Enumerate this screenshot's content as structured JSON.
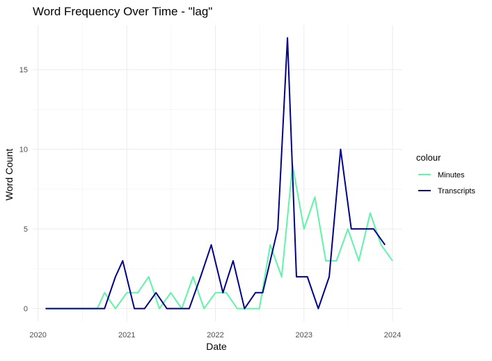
{
  "chart_data": {
    "type": "line",
    "title": "Word Frequency Over Time - \"lag\"",
    "xlabel": "Date",
    "ylabel": "Word Count",
    "x_ticks": [
      "2020",
      "2021",
      "2022",
      "2023",
      "2024"
    ],
    "y_ticks": [
      0,
      5,
      10,
      15
    ],
    "xlim": [
      "2019-12-10",
      "2024-02-10"
    ],
    "ylim": [
      -0.8,
      17.8
    ],
    "grid": true,
    "legend": {
      "title": "colour",
      "placement": "right"
    },
    "series": [
      {
        "name": "Minutes",
        "color": "#5ef5a8",
        "points": [
          {
            "x": "2020-02-01",
            "y": 0
          },
          {
            "x": "2020-03-01",
            "y": 0
          },
          {
            "x": "2020-04-01",
            "y": 0
          },
          {
            "x": "2020-05-01",
            "y": 0
          },
          {
            "x": "2020-06-01",
            "y": 0
          },
          {
            "x": "2020-07-01",
            "y": 0
          },
          {
            "x": "2020-08-01",
            "y": 0
          },
          {
            "x": "2020-09-01",
            "y": 0
          },
          {
            "x": "2020-10-01",
            "y": 1
          },
          {
            "x": "2020-11-15",
            "y": 0
          },
          {
            "x": "2021-01-01",
            "y": 1
          },
          {
            "x": "2021-02-15",
            "y": 1
          },
          {
            "x": "2021-04-01",
            "y": 2
          },
          {
            "x": "2021-05-15",
            "y": 0
          },
          {
            "x": "2021-07-01",
            "y": 1
          },
          {
            "x": "2021-08-15",
            "y": 0
          },
          {
            "x": "2021-10-01",
            "y": 2
          },
          {
            "x": "2021-11-15",
            "y": 0
          },
          {
            "x": "2022-01-01",
            "y": 1
          },
          {
            "x": "2022-02-15",
            "y": 1
          },
          {
            "x": "2022-04-01",
            "y": 0
          },
          {
            "x": "2022-05-15",
            "y": 0
          },
          {
            "x": "2022-07-01",
            "y": 0
          },
          {
            "x": "2022-08-15",
            "y": 4
          },
          {
            "x": "2022-10-01",
            "y": 2
          },
          {
            "x": "2022-11-15",
            "y": 9
          },
          {
            "x": "2023-01-01",
            "y": 5
          },
          {
            "x": "2023-02-15",
            "y": 7
          },
          {
            "x": "2023-04-01",
            "y": 3
          },
          {
            "x": "2023-05-15",
            "y": 3
          },
          {
            "x": "2023-07-01",
            "y": 5
          },
          {
            "x": "2023-08-15",
            "y": 3
          },
          {
            "x": "2023-10-01",
            "y": 6
          },
          {
            "x": "2023-11-15",
            "y": 4
          },
          {
            "x": "2024-01-01",
            "y": 3
          }
        ]
      },
      {
        "name": "Transcripts",
        "color": "#00008b",
        "points": [
          {
            "x": "2020-02-01",
            "y": 0
          },
          {
            "x": "2020-03-01",
            "y": 0
          },
          {
            "x": "2020-04-01",
            "y": 0
          },
          {
            "x": "2020-05-01",
            "y": 0
          },
          {
            "x": "2020-06-01",
            "y": 0
          },
          {
            "x": "2020-07-01",
            "y": 0
          },
          {
            "x": "2020-08-01",
            "y": 0
          },
          {
            "x": "2020-09-01",
            "y": 0
          },
          {
            "x": "2020-10-01",
            "y": 0
          },
          {
            "x": "2020-11-15",
            "y": 2
          },
          {
            "x": "2020-12-15",
            "y": 3
          },
          {
            "x": "2021-02-01",
            "y": 0
          },
          {
            "x": "2021-03-15",
            "y": 0
          },
          {
            "x": "2021-05-01",
            "y": 1
          },
          {
            "x": "2021-06-15",
            "y": 0
          },
          {
            "x": "2021-08-01",
            "y": 0
          },
          {
            "x": "2021-09-15",
            "y": 0
          },
          {
            "x": "2021-11-01",
            "y": 2
          },
          {
            "x": "2021-12-15",
            "y": 4
          },
          {
            "x": "2022-02-01",
            "y": 1
          },
          {
            "x": "2022-03-15",
            "y": 3
          },
          {
            "x": "2022-05-01",
            "y": 0
          },
          {
            "x": "2022-06-15",
            "y": 1
          },
          {
            "x": "2022-07-15",
            "y": 1
          },
          {
            "x": "2022-09-15",
            "y": 5
          },
          {
            "x": "2022-10-25",
            "y": 17
          },
          {
            "x": "2022-12-01",
            "y": 2
          },
          {
            "x": "2023-01-15",
            "y": 2
          },
          {
            "x": "2023-03-01",
            "y": 0
          },
          {
            "x": "2023-04-15",
            "y": 2
          },
          {
            "x": "2023-06-01",
            "y": 10
          },
          {
            "x": "2023-07-15",
            "y": 5
          },
          {
            "x": "2023-09-01",
            "y": 5
          },
          {
            "x": "2023-10-15",
            "y": 5
          },
          {
            "x": "2023-12-01",
            "y": 4
          }
        ]
      }
    ]
  }
}
